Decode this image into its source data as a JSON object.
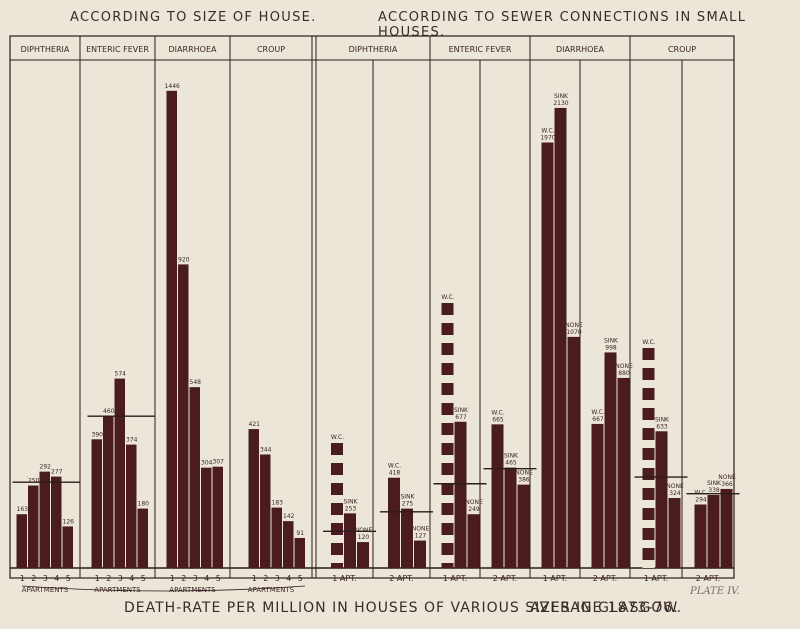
{
  "header": {
    "left": "According to Size of House.",
    "right": "According to Sewer Connections in Small Houses."
  },
  "footer": {
    "title": "Death-Rate per Million in Houses of various sizes in Glasgow.",
    "average": "Average 1873-76.",
    "plate": "PLATE IV."
  },
  "colors": {
    "bar": "#4a1c20",
    "line": "#2d1a1a",
    "paper": "#ece6d8"
  },
  "chart_data": [
    {
      "type": "bar",
      "group": "According to Size of House",
      "panels": [
        {
          "label": "DIPHTHERIA",
          "categories": [
            "1",
            "2",
            "3",
            "4",
            "5"
          ],
          "values": [
            163,
            250,
            292,
            277,
            126
          ],
          "mean": 260,
          "xlabel": "APARTMENTS"
        },
        {
          "label": "ENTERIC FEVER",
          "categories": [
            "1",
            "2",
            "3",
            "4",
            "5"
          ],
          "values": [
            390,
            460,
            574,
            374,
            180
          ],
          "mean": 460,
          "xlabel": "APARTMENTS"
        },
        {
          "label": "DIARRHOEA",
          "categories": [
            "1",
            "2",
            "3",
            "4",
            "5"
          ],
          "values": [
            1446,
            920,
            548,
            304,
            307
          ],
          "xlabel": "APARTMENTS"
        },
        {
          "label": "CROUP",
          "categories": [
            "1",
            "2",
            "3",
            "4",
            "5"
          ],
          "values": [
            421,
            344,
            183,
            142,
            91
          ],
          "xlabel": "APARTMENTS"
        }
      ]
    },
    {
      "type": "bar",
      "group": "According to Sewer Connections in Small Houses",
      "panels": [
        {
          "label": "DIPHTHERIA",
          "subgroups": [
            {
              "label": "1 APT.",
              "bars": [
                {
                  "name": "W.C.",
                  "value": null
                },
                {
                  "name": "SINK",
                  "value": 253
                },
                {
                  "name": "NONE",
                  "value": 120
                }
              ],
              "mean": 170
            },
            {
              "label": "2 APT.",
              "bars": [
                {
                  "name": "W.C.",
                  "value": 418
                },
                {
                  "name": "SINK",
                  "value": 275
                },
                {
                  "name": "NONE",
                  "value": 127
                }
              ],
              "mean": 260
            }
          ]
        },
        {
          "label": "ENTERIC FEVER",
          "subgroups": [
            {
              "label": "1 APT.",
              "bars": [
                {
                  "name": "W.C.",
                  "value": null
                },
                {
                  "name": "SINK",
                  "value": 677
                },
                {
                  "name": "NONE",
                  "value": 249
                }
              ],
              "mean": 390
            },
            {
              "label": "2 APT.",
              "bars": [
                {
                  "name": "W.C.",
                  "value": 665
                },
                {
                  "name": "SINK",
                  "value": 465
                },
                {
                  "name": "NONE",
                  "value": 386
                }
              ],
              "mean": 460
            }
          ]
        },
        {
          "label": "DIARRHOEA",
          "subgroups": [
            {
              "label": "1 APT.",
              "bars": [
                {
                  "name": "W.C.",
                  "value": 1970
                },
                {
                  "name": "SINK",
                  "value": 2130
                },
                {
                  "name": "NONE",
                  "value": 1070
                }
              ],
              "mean": null
            },
            {
              "label": "2 APT.",
              "bars": [
                {
                  "name": "W.C.",
                  "value": 667
                },
                {
                  "name": "SINK",
                  "value": 998
                },
                {
                  "name": "NONE",
                  "value": 880
                }
              ],
              "mean": null
            }
          ]
        },
        {
          "label": "CROUP",
          "subgroups": [
            {
              "label": "1 APT.",
              "bars": [
                {
                  "name": "W.C.",
                  "value": null
                },
                {
                  "name": "SINK",
                  "value": 633
                },
                {
                  "name": "NONE",
                  "value": 324
                }
              ],
              "mean": 421
            },
            {
              "label": "2 APT.",
              "bars": [
                {
                  "name": "W.C.",
                  "value": 294
                },
                {
                  "name": "SINK",
                  "value": 338
                },
                {
                  "name": "NONE",
                  "value": 366
                }
              ],
              "mean": 344
            }
          ]
        }
      ]
    }
  ]
}
